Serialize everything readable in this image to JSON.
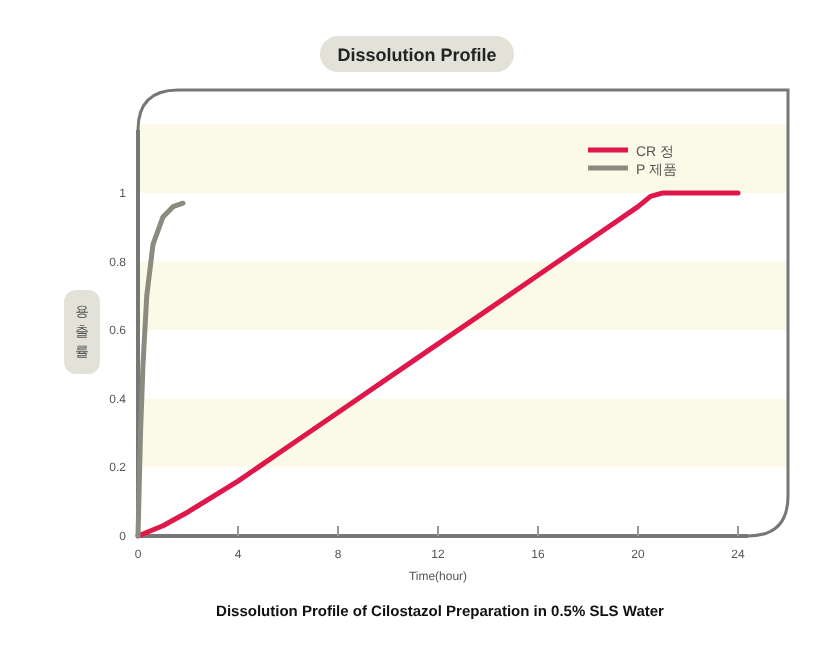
{
  "chart_data": {
    "type": "line",
    "title": "Dissolution Profile",
    "xlabel": "Time(hour)",
    "ylabel": "용출률",
    "annotations": [
      "Dissolution Profile of Cilostazol Preparation in 0.5% SLS Water"
    ],
    "series": [
      {
        "name": "CR 정",
        "color": "#e0174a",
        "x": [
          0,
          1,
          2,
          4,
          6,
          8,
          10,
          12,
          14,
          16,
          18,
          20,
          20.5,
          21,
          24
        ],
        "values": [
          0,
          0.03,
          0.07,
          0.16,
          0.26,
          0.36,
          0.46,
          0.56,
          0.66,
          0.76,
          0.86,
          0.96,
          0.99,
          1,
          1
        ]
      },
      {
        "name": "P 제품",
        "color": "#8a8c80",
        "x": [
          0,
          0.1,
          0.2,
          0.35,
          0.6,
          1,
          1.4,
          1.8
        ],
        "values": [
          0,
          0.3,
          0.5,
          0.7,
          0.85,
          0.93,
          0.96,
          0.97
        ]
      }
    ],
    "xlim": [
      0,
      26
    ],
    "xticks": [
      0,
      4,
      8,
      12,
      16,
      20,
      24
    ],
    "ylim": [
      0,
      1.3
    ],
    "yticks": [
      0,
      0.2,
      0.4,
      0.6,
      0.8,
      1
    ],
    "bands": [
      {
        "axis": "y",
        "from": 0.2,
        "to": 0.4,
        "color": "#fbfae8"
      },
      {
        "axis": "y",
        "from": 0.6,
        "to": 0.8,
        "color": "#fbfae8"
      },
      {
        "axis": "y",
        "from": 1.0,
        "to": 1.2,
        "color": "#fbfae8"
      }
    ],
    "legend": "top right",
    "grid": false
  }
}
